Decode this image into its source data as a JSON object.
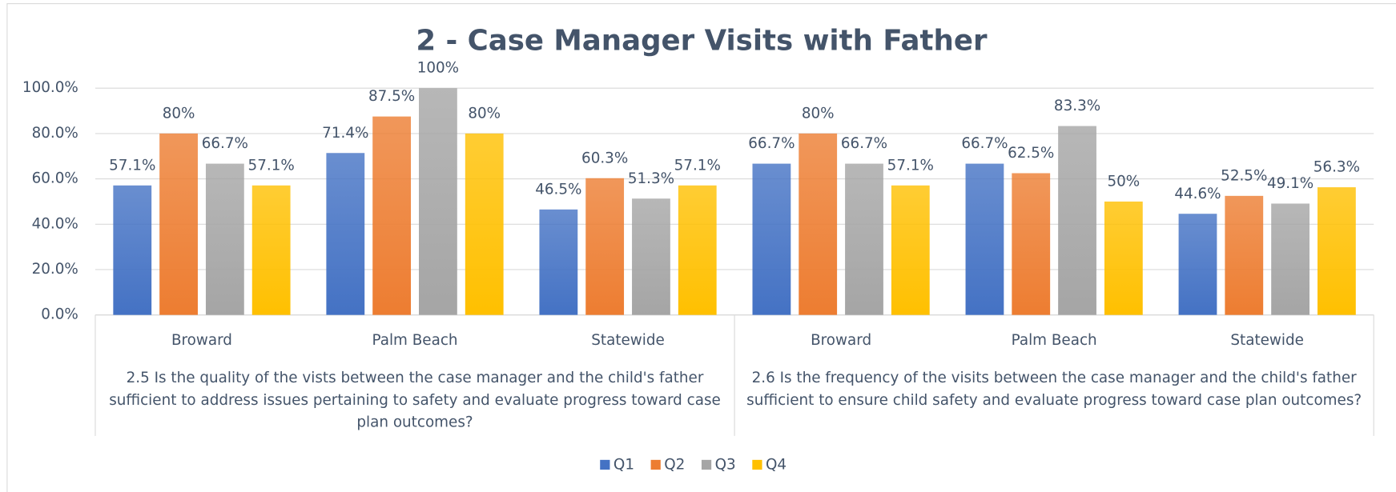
{
  "chart_data": {
    "type": "bar",
    "title": "2 - Case Manager Visits with Father",
    "groups": [
      {
        "label": "2.5 Is the quality of the vists between the case manager and the child's father sufficient to address issues pertaining to safety and evaluate progress toward case plan outcomes?",
        "categories": [
          "Broward",
          "Palm Beach",
          "Statewide"
        ]
      },
      {
        "label": "2.6 Is the frequency of the visits between the case manager and the child's father sufficient to ensure child safety and evaluate progress toward case plan outcomes?",
        "categories": [
          "Broward",
          "Palm Beach",
          "Statewide"
        ]
      }
    ],
    "series": [
      {
        "name": "Q1",
        "color": "#4472c4",
        "values": [
          57.1,
          71.4,
          46.5,
          66.7,
          66.7,
          44.6
        ],
        "value_labels": [
          "57.1%",
          "71.4%",
          "46.5%",
          "66.7%",
          "66.7%",
          "44.6%"
        ]
      },
      {
        "name": "Q2",
        "color": "#ed7d31",
        "values": [
          80,
          87.5,
          60.3,
          80,
          62.5,
          52.5
        ],
        "value_labels": [
          "80%",
          "87.5%",
          "60.3%",
          "80%",
          "62.5%",
          "52.5%"
        ]
      },
      {
        "name": "Q3",
        "color": "#a5a5a5",
        "values": [
          66.7,
          100,
          51.3,
          66.7,
          83.3,
          49.1
        ],
        "value_labels": [
          "66.7%",
          "100%",
          "51.3%",
          "66.7%",
          "83.3%",
          "49.1%"
        ]
      },
      {
        "name": "Q4",
        "color": "#ffc000",
        "values": [
          57.1,
          80,
          57.1,
          57.1,
          50,
          56.3
        ],
        "value_labels": [
          "57.1%",
          "80%",
          "57.1%",
          "57.1%",
          "50%",
          "56.3%"
        ]
      }
    ],
    "ylim": [
      0,
      100
    ],
    "yticks": [
      {
        "value": 0,
        "label": "0.0%"
      },
      {
        "value": 20,
        "label": "20.0%"
      },
      {
        "value": 40,
        "label": "40.0%"
      },
      {
        "value": 60,
        "label": "60.0%"
      },
      {
        "value": 80,
        "label": "80.0%"
      },
      {
        "value": 100,
        "label": "100.0%"
      }
    ],
    "grid": true,
    "legend": "bottom"
  }
}
